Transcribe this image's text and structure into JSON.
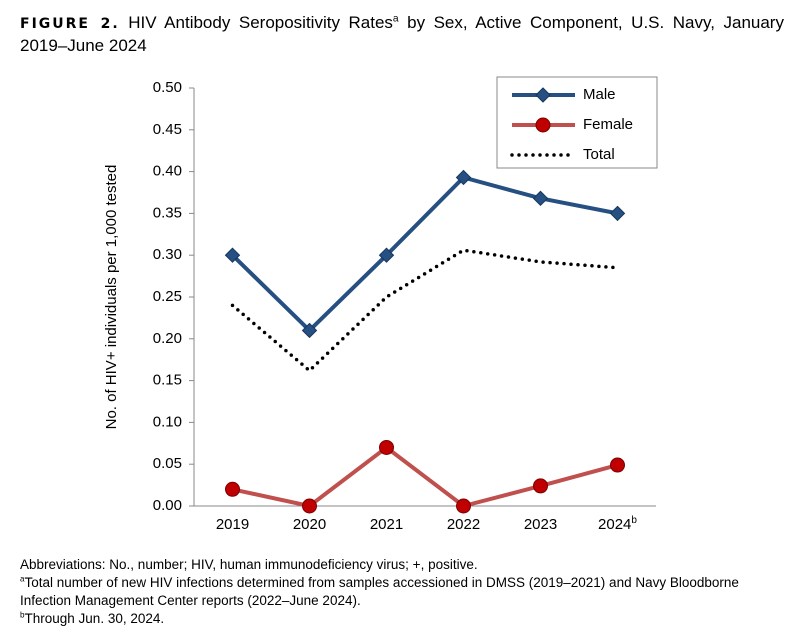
{
  "chart_data": {
    "type": "line",
    "figure_label": "FIGURE 2.",
    "title": "HIV Antibody Seropositivity Rates",
    "title_superscript": "a",
    "title_rest": "by Sex, Active Component, U.S. Navy, January 2019–June 2024",
    "y_label": "No. of HIV+ individuals per 1,000 tested",
    "categories": [
      "2019",
      "2020",
      "2021",
      "2022",
      "2023",
      "2024"
    ],
    "category_superscripts": [
      null,
      null,
      null,
      null,
      null,
      "b"
    ],
    "series": [
      {
        "name": "Male",
        "color": "#264f82",
        "marker": "diamond",
        "values": [
          0.3,
          0.21,
          0.3,
          0.393,
          0.368,
          0.35
        ]
      },
      {
        "name": "Female",
        "color": "#c0504d",
        "marker": "circle",
        "values": [
          0.02,
          0.0,
          0.07,
          0.0,
          0.024,
          0.049
        ]
      },
      {
        "name": "Total",
        "color": "#000000",
        "dash": "dotted",
        "values": [
          0.24,
          0.162,
          0.25,
          0.306,
          0.292,
          0.285
        ]
      }
    ],
    "ylim": [
      0,
      0.5
    ],
    "yticks": [
      {
        "value": 0,
        "label": "0.00"
      },
      {
        "value": 0.05,
        "label": "0.05"
      },
      {
        "value": 0.1,
        "label": "0.10"
      },
      {
        "value": 0.15,
        "label": "0.15"
      },
      {
        "value": 0.2,
        "label": "0.20"
      },
      {
        "value": 0.25,
        "label": "0.25"
      },
      {
        "value": 0.3,
        "label": "0.30"
      },
      {
        "value": 0.35,
        "label": "0.35"
      },
      {
        "value": 0.4,
        "label": "0.40"
      },
      {
        "value": 0.45,
        "label": "0.45"
      },
      {
        "value": 0.5,
        "label": "0.50"
      }
    ],
    "legend": "upper right",
    "notes": [
      {
        "mark": null,
        "text": "Abbreviations: No., number; HIV, human immunodeficiency virus; +, positive."
      },
      {
        "mark": "a",
        "text": "Total number of new HIV infections determined from samples accessioned in DMSS (2019–2021) and Navy Bloodborne Infection Management Center reports (2022–June 2024)."
      },
      {
        "mark": "b",
        "text": "Through Jun. 30, 2024."
      }
    ]
  }
}
